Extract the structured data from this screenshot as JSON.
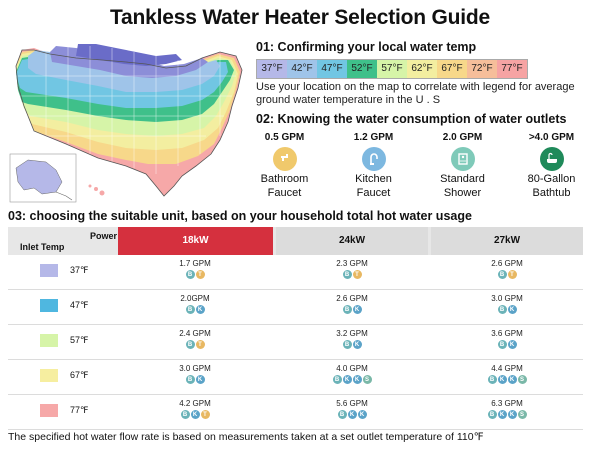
{
  "title": "Tankless Water Heater Selection Guide",
  "section1": {
    "heading": "01:  Confirming your local water temp",
    "legend": [
      {
        "label": "37°F",
        "color": "#b5b8e8"
      },
      {
        "label": "42°F",
        "color": "#9fc4e9"
      },
      {
        "label": "47°F",
        "color": "#71c6e3"
      },
      {
        "label": "52°F",
        "color": "#3fc08a"
      },
      {
        "label": "57°F",
        "color": "#d6f4a8"
      },
      {
        "label": "62°F",
        "color": "#f3eea0"
      },
      {
        "label": "67°F",
        "color": "#f7d88a"
      },
      {
        "label": "72°F",
        "color": "#f6be9a"
      },
      {
        "label": "77°F",
        "color": "#f6a3a3"
      }
    ],
    "instruction": "Use your location on the map to correlate with legend for average ground water temperature in the U . S"
  },
  "section2": {
    "heading": "02:  Knowing the water consumption of water outlets",
    "outlets": [
      {
        "gpm": "0.5 GPM",
        "name_line1": "Bathroom",
        "name_line2": "Faucet",
        "icon": "faucet-icon",
        "color": "#f0c96c"
      },
      {
        "gpm": "1.2 GPM",
        "name_line1": "Kitchen",
        "name_line2": "Faucet",
        "icon": "kitchen-faucet-icon",
        "color": "#7db8e0"
      },
      {
        "gpm": "2.0 GPM",
        "name_line1": "Standard",
        "name_line2": "Shower",
        "icon": "shower-icon",
        "color": "#7fcab9"
      },
      {
        "gpm": ">4.0 GPM",
        "name_line1": "80-Gallon",
        "name_line2": "Bathtub",
        "icon": "bathtub-icon",
        "color": "#1f8a5a"
      }
    ]
  },
  "section3": {
    "heading": "03:  choosing the suitable unit, based on your household total hot water usage",
    "power_label": "Power",
    "inlet_label": "Inlet Temp",
    "columns": [
      "18kW",
      "24kW",
      "27kW"
    ],
    "rows": [
      {
        "temp": "37℉",
        "color": "#b5b8e8",
        "cells": [
          {
            "value": "1.7 GPM",
            "icons": [
              "faucet",
              "bath"
            ]
          },
          {
            "value": "2.3 GPM",
            "icons": [
              "faucet",
              "bath"
            ]
          },
          {
            "value": "2.6 GPM",
            "icons": [
              "faucet",
              "bath"
            ]
          }
        ]
      },
      {
        "temp": "47℉",
        "color": "#4fb7e0",
        "cells": [
          {
            "value": "2.0GPM",
            "icons": [
              "faucet",
              "kitchen"
            ]
          },
          {
            "value": "2.6 GPM",
            "icons": [
              "faucet",
              "kitchen"
            ]
          },
          {
            "value": "3.0 GPM",
            "icons": [
              "faucet",
              "kitchen"
            ]
          }
        ]
      },
      {
        "temp": "57℉",
        "color": "#d6f4a8",
        "cells": [
          {
            "value": "2.4 GPM",
            "icons": [
              "faucet",
              "bath"
            ]
          },
          {
            "value": "3.2 GPM",
            "icons": [
              "faucet",
              "kitchen"
            ]
          },
          {
            "value": "3.6 GPM",
            "icons": [
              "faucet",
              "kitchen"
            ]
          }
        ]
      },
      {
        "temp": "67℉",
        "color": "#f6eea0",
        "cells": [
          {
            "value": "3.0 GPM",
            "icons": [
              "faucet",
              "kitchen"
            ]
          },
          {
            "value": "4.0 GPM",
            "icons": [
              "faucet",
              "kitchen",
              "kitchen",
              "shower"
            ]
          },
          {
            "value": "4.4 GPM",
            "icons": [
              "faucet",
              "kitchen",
              "kitchen",
              "shower"
            ]
          }
        ]
      },
      {
        "temp": "77℉",
        "color": "#f6a8a8",
        "cells": [
          {
            "value": "4.2 GPM",
            "icons": [
              "faucet",
              "kitchen",
              "bath"
            ]
          },
          {
            "value": "5.6 GPM",
            "icons": [
              "faucet",
              "kitchen",
              "kitchen"
            ]
          },
          {
            "value": "6.3 GPM",
            "icons": [
              "faucet",
              "kitchen",
              "kitchen",
              "shower"
            ]
          }
        ]
      }
    ]
  },
  "footnote": "The specified hot water flow rate is based on measurements taken at a set outlet temperature of 110℉"
}
